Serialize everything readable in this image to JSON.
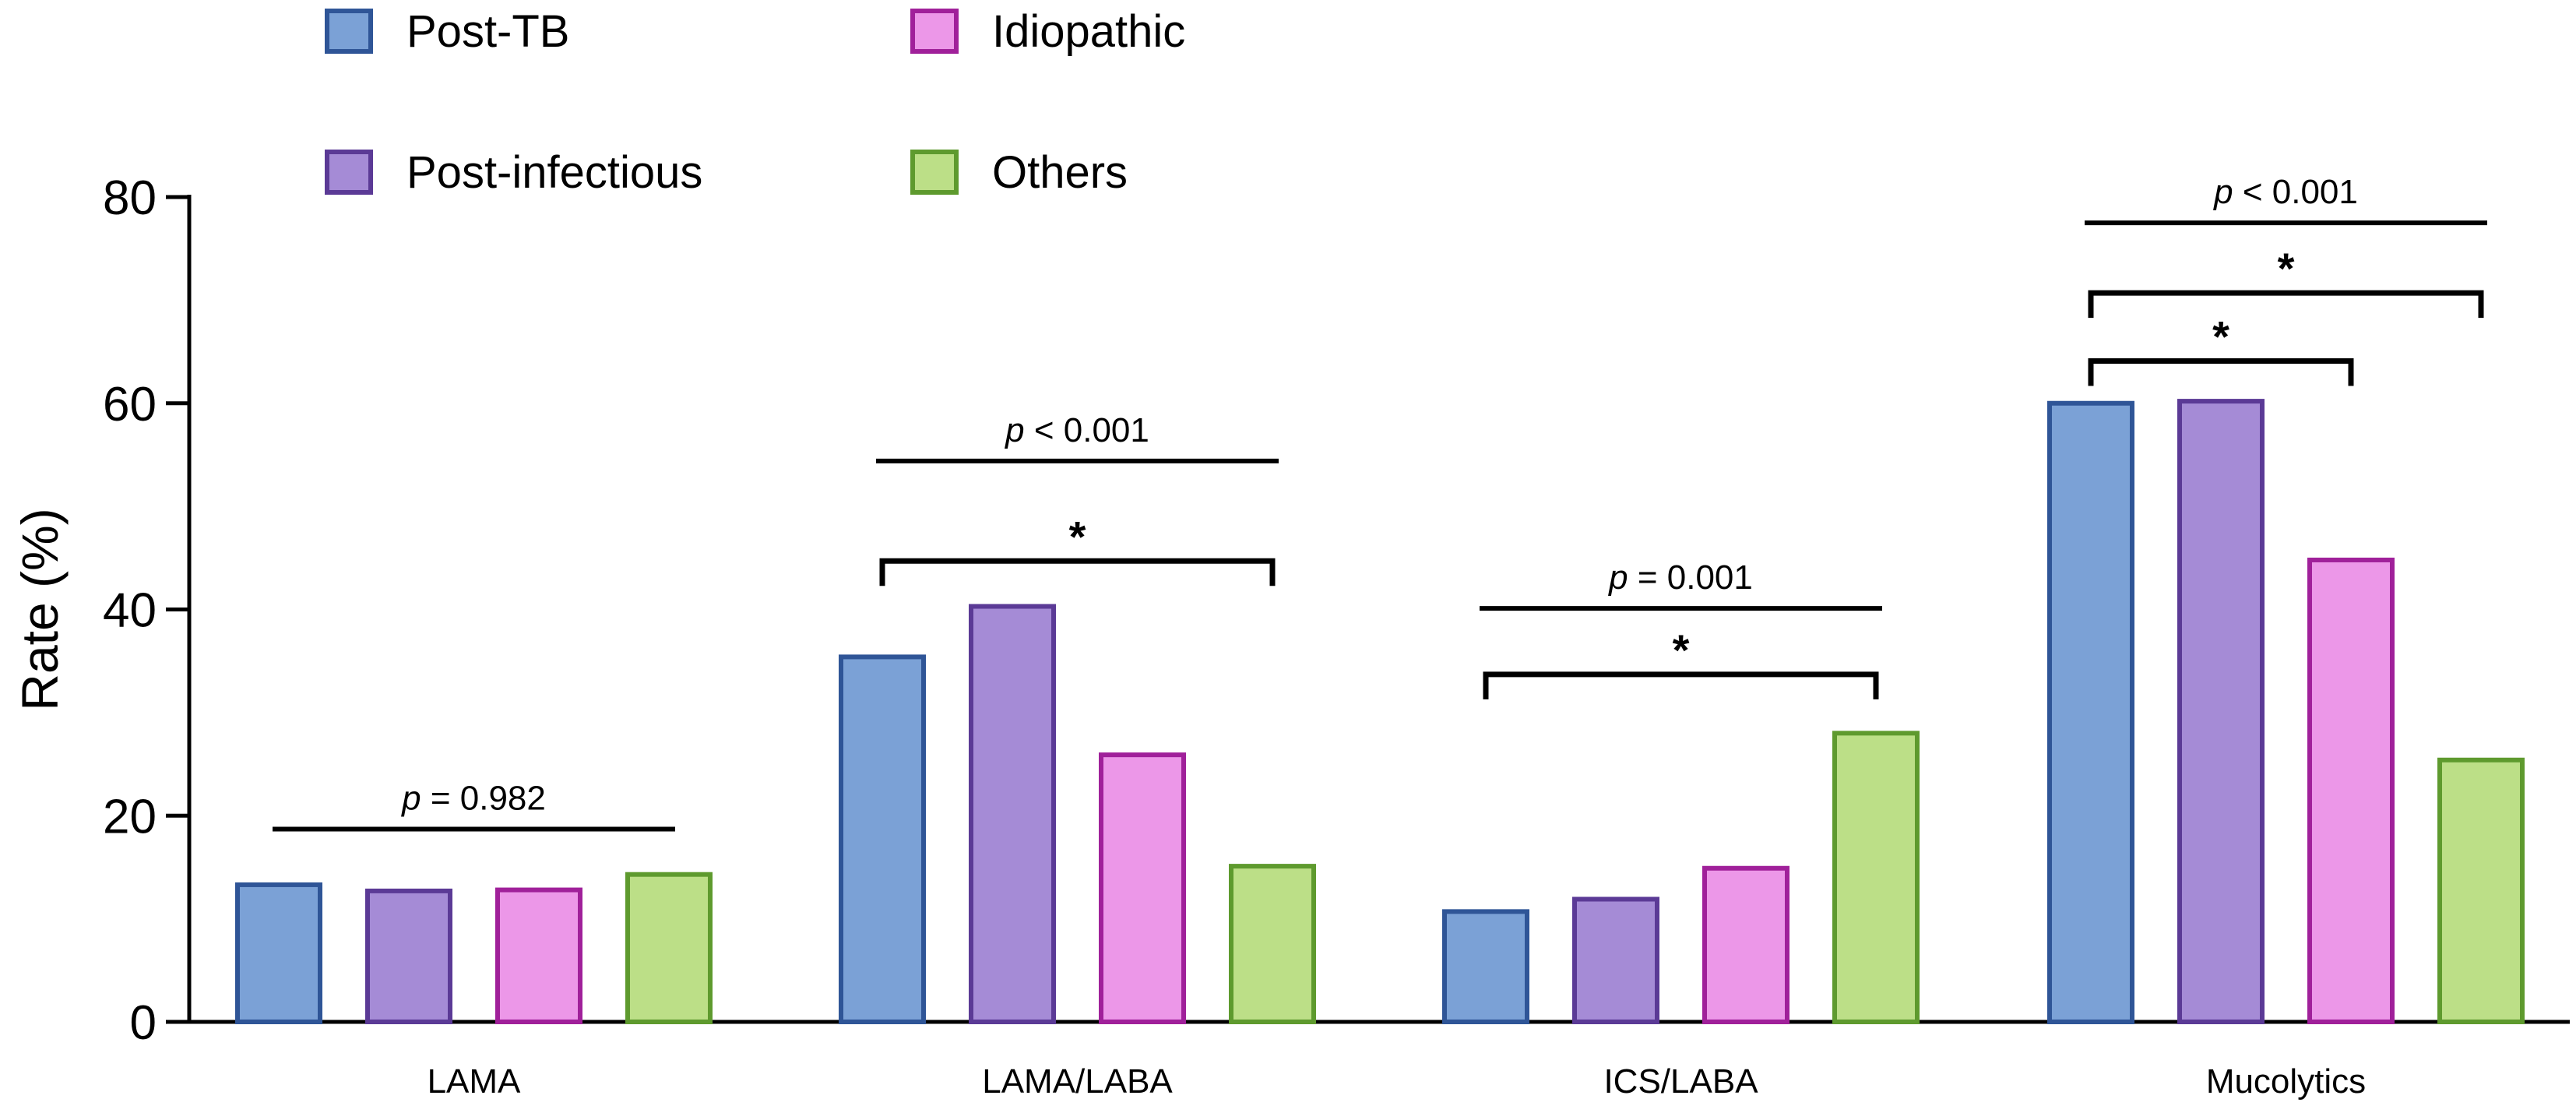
{
  "chart_data": {
    "type": "bar",
    "title": "",
    "xlabel": "",
    "ylabel": "Rate  (%)",
    "ylim": [
      0,
      80
    ],
    "yticks": [
      0,
      20,
      40,
      60,
      80
    ],
    "categories": [
      "LAMA",
      "LAMA/LABA",
      "ICS/LABA",
      "Mucolytics"
    ],
    "series": [
      {
        "name": "Post-TB",
        "fill": "#7BA1D6",
        "stroke": "#2F5597",
        "values": [
          13.3,
          35.4,
          10.7,
          60.0
        ]
      },
      {
        "name": "Post-infectious",
        "fill": "#A58BD6",
        "stroke": "#5B3A96",
        "values": [
          12.7,
          40.3,
          11.9,
          60.2
        ]
      },
      {
        "name": "Idiopathic",
        "fill": "#EC97E8",
        "stroke": "#A0209A",
        "values": [
          12.8,
          25.9,
          14.9,
          44.8
        ]
      },
      {
        "name": "Others",
        "fill": "#BCDF87",
        "stroke": "#5E9A2E",
        "values": [
          14.3,
          15.1,
          28.0,
          25.4
        ]
      }
    ],
    "legend": {
      "position": "top-left",
      "order": [
        "Post-TB",
        "Idiopathic",
        "Post-infectious",
        "Others"
      ]
    },
    "annotations": [
      {
        "category": "LAMA",
        "type": "line",
        "italic": "p",
        "rest": " = 0.982",
        "from_series": 0,
        "to_series": 3,
        "y": 18.7
      },
      {
        "category": "LAMA/LABA",
        "type": "line",
        "italic": "p",
        "rest": " < 0.001",
        "from_series": 0,
        "to_series": 3,
        "y": 54.4
      },
      {
        "category": "LAMA/LABA",
        "type": "bracket",
        "label": "*",
        "from_series": 0,
        "to_series": 3,
        "y": 44.7
      },
      {
        "category": "ICS/LABA",
        "type": "line",
        "italic": "p",
        "rest": " = 0.001",
        "from_series": 0,
        "to_series": 3,
        "y": 40.1
      },
      {
        "category": "ICS/LABA",
        "type": "bracket",
        "label": "*",
        "from_series": 0,
        "to_series": 3,
        "y": 33.7
      },
      {
        "category": "Mucolytics",
        "type": "line",
        "italic": "p",
        "rest": " < 0.001",
        "from_series": 0,
        "to_series": 3,
        "y": 77.5
      },
      {
        "category": "Mucolytics",
        "type": "bracket",
        "label": "*",
        "from_series": 0,
        "to_series": 3,
        "y": 70.7
      },
      {
        "category": "Mucolytics",
        "type": "bracket",
        "label": "*",
        "from_series": 0,
        "to_series": 2,
        "y": 64.1
      }
    ]
  }
}
